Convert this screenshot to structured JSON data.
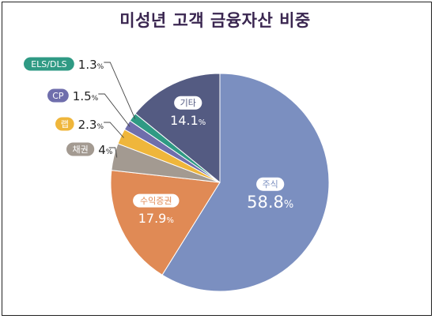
{
  "chart_data": {
    "type": "pie",
    "title": "미성년 고객 금융자산 비중",
    "unit": "%",
    "slices": [
      {
        "label": "주식",
        "value": 58.8,
        "color": "#7b8fc0"
      },
      {
        "label": "수익증권",
        "value": 17.9,
        "color": "#e08a55"
      },
      {
        "label": "채권",
        "value": 4,
        "color": "#a39a91"
      },
      {
        "label": "랩",
        "value": 2.3,
        "color": "#efb63b"
      },
      {
        "label": "CP",
        "value": 1.5,
        "color": "#6f6eac"
      },
      {
        "label": "ELS/DLS",
        "value": 1.3,
        "color": "#2f9a84"
      },
      {
        "label": "기타",
        "value": 14.1,
        "color": "#545b82"
      }
    ],
    "label_position": {
      "주식": "inside",
      "수익증권": "inside",
      "기타": "inside",
      "채권": "outside",
      "랩": "outside",
      "CP": "outside",
      "ELS/DLS": "outside"
    },
    "legend": "none"
  }
}
